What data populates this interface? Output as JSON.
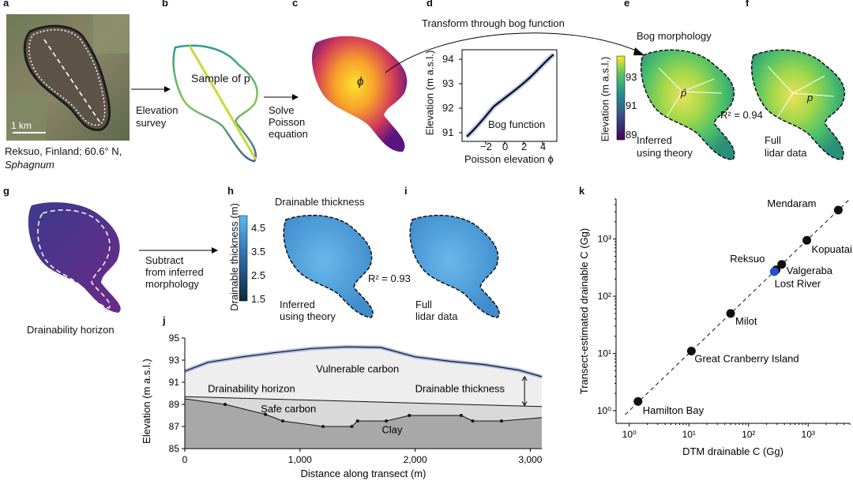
{
  "panels": {
    "a": "a",
    "b": "b",
    "c": "c",
    "d": "d",
    "e": "e",
    "f": "f",
    "g": "g",
    "h": "h",
    "i": "i",
    "j": "j",
    "k": "k"
  },
  "panel_a": {
    "scale": "1 km",
    "caption_line1": "Reksuo, Finland; 60.6° N,",
    "caption_line2": "Sphagnum"
  },
  "arrows": {
    "survey_line1": "Elevation",
    "survey_line2": "survey",
    "poisson_line1": "Solve",
    "poisson_line2": "Poisson",
    "poisson_line3": "equation",
    "transform": "Transform through bog function",
    "subtract_line1": "Subtract",
    "subtract_line2": "from inferred",
    "subtract_line3": "morphology"
  },
  "panel_b": {
    "label": "Sample of p"
  },
  "panel_c": {
    "symbol": "ϕ"
  },
  "panel_d": {
    "ylabel": "Elevation (m a.s.l.)",
    "xlabel": "Poisson elevation ϕ",
    "curve_label": "Bog function",
    "yticks": [
      "94",
      "93",
      "92",
      "91"
    ],
    "xticks": [
      "−2",
      "0",
      "2",
      "4"
    ]
  },
  "panel_ef": {
    "title": "Bog morphology",
    "cbar_label": "Elevation (m a.s.l.)",
    "cbar_ticks": [
      "93",
      "91",
      "89"
    ],
    "e_label1": "Inferred",
    "e_label2": "using theory",
    "e_symbol": "p̂",
    "f_label1": "Full",
    "f_label2": "lidar data",
    "f_symbol": "p",
    "r2": "R² = 0.94"
  },
  "panel_g": {
    "caption": "Drainability horizon"
  },
  "panel_hi": {
    "title": "Drainable thickness",
    "cbar_label": "Drainable thickness (m)",
    "cbar_ticks": [
      "4.5",
      "3.5",
      "2.5",
      "1.5"
    ],
    "h_label1": "Inferred",
    "h_label2": "using theory",
    "i_label1": "Full",
    "i_label2": "lidar data",
    "r2": "R² = 0.93"
  },
  "chart_data": [
    {
      "type": "line",
      "title": "",
      "xlabel": "Distance along transect (m)",
      "ylabel": "Elevation (m a.s.l.)",
      "xlim": [
        0,
        3100
      ],
      "ylim": [
        85,
        95
      ],
      "xticks": [
        "0",
        "1,000",
        "2,000",
        "3,000"
      ],
      "yticks": [
        "95",
        "93",
        "91",
        "89",
        "87",
        "85"
      ],
      "series": [
        {
          "name": "",
          "x": [
            0,
            200,
            500,
            800,
            1100,
            1400,
            1700,
            2000,
            2300,
            2600,
            2900,
            3100
          ],
          "y": [
            92,
            92.8,
            93.3,
            93.7,
            94.05,
            94.2,
            94.15,
            93.3,
            92.9,
            92.6,
            92.1,
            91.5
          ]
        },
        {
          "name": "Drainability horizon",
          "x": [
            0,
            3100
          ],
          "y": [
            89.7,
            88.8
          ]
        },
        {
          "name": "",
          "x": [
            0,
            350,
            700,
            850,
            1200,
            1450,
            1500,
            1750,
            1950,
            2400,
            2500,
            2750,
            3100
          ],
          "y": [
            89.5,
            89.0,
            88.1,
            87.5,
            87.0,
            87.0,
            87.5,
            87.5,
            88.0,
            88.0,
            87.5,
            87.5,
            87.8
          ]
        }
      ],
      "annotations": [
        "Vulnerable carbon",
        "Drainability horizon",
        "Drainable thickness",
        "Safe carbon",
        "Clay"
      ]
    },
    {
      "type": "scatter",
      "title": "",
      "xlabel": "DTM drainable C (Gg)",
      "ylabel": "Transect-estimated drainable C (Gg)",
      "xscale": "log",
      "yscale": "log",
      "xlim": [
        0.6,
        5000
      ],
      "ylim": [
        0.6,
        5000
      ],
      "xticks": [
        "10⁰",
        "10¹",
        "10²",
        "10³"
      ],
      "yticks": [
        "10⁰",
        "10¹",
        "10²",
        "10³"
      ],
      "points": [
        {
          "label": "Mendaram",
          "x": 3200,
          "y": 3200
        },
        {
          "label": "Kopuatai",
          "x": 950,
          "y": 950
        },
        {
          "label": "Valgeraba",
          "x": 360,
          "y": 360
        },
        {
          "label": "Lost River",
          "x": 290,
          "y": 290
        },
        {
          "label": "Reksuo",
          "x": 270,
          "y": 270
        },
        {
          "label": "Milot",
          "x": 50,
          "y": 50
        },
        {
          "label": "Great Cranberry Island",
          "x": 11,
          "y": 11
        },
        {
          "label": "Hamilton Bay",
          "x": 1.4,
          "y": 1.45
        }
      ],
      "highlight": "Reksuo",
      "highlight_color": "#1f4fd8"
    }
  ]
}
